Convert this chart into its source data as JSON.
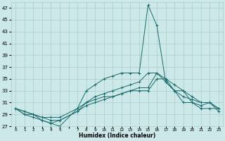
{
  "xlabel": "Humidex (Indice chaleur)",
  "background_color": "#cce8e8",
  "grid_color": "#aacccc",
  "line_color": "#1a6b6b",
  "xlim": [
    -0.5,
    23.5
  ],
  "ylim": [
    27,
    48
  ],
  "yticks": [
    27,
    29,
    31,
    33,
    35,
    37,
    39,
    41,
    43,
    45,
    47
  ],
  "xtick_labels": [
    "0",
    "1",
    "2",
    "3",
    "4",
    "5",
    "",
    "7",
    "8",
    "9",
    "10",
    "11",
    "12",
    "13",
    "14",
    "15",
    "16",
    "17",
    "18",
    "19",
    "20",
    "21",
    "22",
    "23"
  ],
  "curves": [
    {
      "x": [
        0,
        1,
        2,
        3,
        4,
        5,
        7,
        8,
        9,
        10,
        11,
        12,
        13,
        14,
        15,
        16,
        17,
        18,
        19,
        20,
        21,
        22,
        23
      ],
      "y": [
        30,
        29,
        29,
        28,
        27.5,
        27,
        30,
        33,
        34,
        35,
        35.5,
        36,
        36,
        36,
        47.5,
        44,
        34.5,
        33,
        31,
        31,
        30,
        30,
        30
      ]
    },
    {
      "x": [
        0,
        1,
        2,
        3,
        4,
        5,
        7,
        8,
        9,
        10,
        11,
        12,
        13,
        14,
        15,
        16,
        17,
        18,
        19,
        20,
        21,
        22,
        23
      ],
      "y": [
        30,
        29,
        28.5,
        28,
        27.5,
        28,
        29.5,
        31,
        32,
        32.5,
        33,
        33.5,
        34,
        34.5,
        36,
        36,
        35,
        34,
        33,
        31,
        30.5,
        31,
        30
      ]
    },
    {
      "x": [
        0,
        1,
        2,
        3,
        4,
        5,
        7,
        8,
        9,
        10,
        11,
        12,
        13,
        14,
        15,
        16,
        17,
        18,
        19,
        20,
        21,
        22,
        23
      ],
      "y": [
        30,
        29.5,
        29,
        28.5,
        28.5,
        28.5,
        30,
        31,
        31.5,
        32,
        32,
        32.5,
        33,
        33,
        33,
        35,
        35,
        33,
        33,
        32,
        31,
        31,
        30
      ]
    },
    {
      "x": [
        0,
        1,
        2,
        3,
        4,
        5,
        7,
        8,
        9,
        10,
        11,
        12,
        13,
        14,
        15,
        16,
        17,
        18,
        19,
        20,
        21,
        22,
        23
      ],
      "y": [
        30,
        29.5,
        29,
        28.5,
        28,
        28,
        29.5,
        30.5,
        31,
        31.5,
        32,
        32.5,
        33,
        33.5,
        33.5,
        36,
        34.5,
        33,
        32,
        31.5,
        31,
        31,
        29.5
      ]
    }
  ]
}
